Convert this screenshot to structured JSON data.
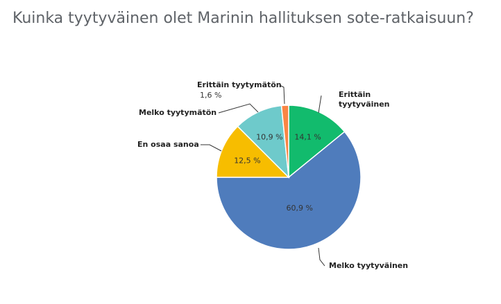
{
  "title": "Kuinka tyytyväinen olet Marinin hallituksen sote-ratkaisuun?",
  "chart_data": {
    "type": "pie",
    "title": "Kuinka tyytyväinen olet Marinin hallituksen sote-ratkaisuun?",
    "slices": [
      {
        "label": "Erittäin tyytyväinen",
        "value": 14.1,
        "value_label": "14,1 %",
        "color": "#12bb6d"
      },
      {
        "label": "Melko tyytyväinen",
        "value": 60.9,
        "value_label": "60,9 %",
        "color": "#4f7cbc"
      },
      {
        "label": "En osaa sanoa",
        "value": 12.5,
        "value_label": "12,5 %",
        "color": "#f7bd00"
      },
      {
        "label": "Melko tyytymätön",
        "value": 10.9,
        "value_label": "10,9 %",
        "color": "#6ecacb"
      },
      {
        "label": "Erittäin tyytymätön",
        "value": 1.6,
        "value_label": "1,6 %",
        "color": "#fa8544"
      }
    ],
    "start_angle": "12 o'clock",
    "direction": "clockwise",
    "legend": "none"
  }
}
